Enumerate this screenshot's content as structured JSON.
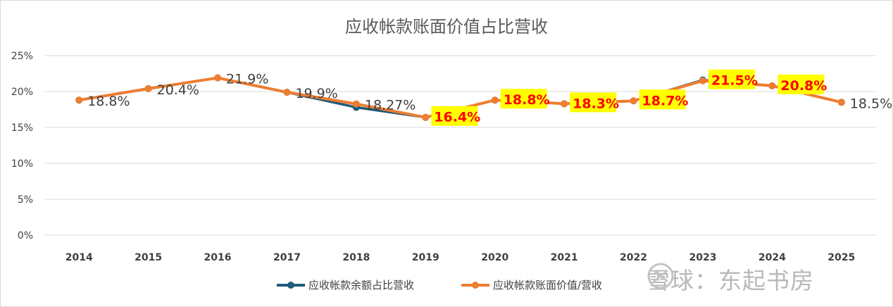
{
  "chart_data": {
    "type": "line",
    "title": "应收帐款账面价值占比营收",
    "xlabel": "",
    "ylabel": "",
    "ylim": [
      0,
      25
    ],
    "y_ticks": [
      "0%",
      "5%",
      "10%",
      "15%",
      "20%",
      "25%"
    ],
    "y_tick_values": [
      0,
      5,
      10,
      15,
      20,
      25
    ],
    "categories": [
      "2014",
      "2015",
      "2016",
      "2017",
      "2018",
      "2019",
      "2020",
      "2021",
      "2022",
      "2023",
      "2024",
      "2025"
    ],
    "grid": true,
    "legend_position": "bottom",
    "series": [
      {
        "name": "应收帐款余额占比营收",
        "color": "#1f5b7a",
        "values": [
          18.8,
          20.4,
          21.9,
          19.9,
          17.8,
          16.4,
          18.8,
          18.3,
          18.7,
          21.6,
          20.8,
          18.5
        ]
      },
      {
        "name": "应收帐款账面价值/营收",
        "color": "#ed7d31",
        "values": [
          18.8,
          20.4,
          21.9,
          19.9,
          18.27,
          16.4,
          18.8,
          18.3,
          18.7,
          21.5,
          20.8,
          18.5
        ]
      }
    ],
    "data_labels": [
      {
        "text": "18.8%",
        "highlight": false
      },
      {
        "text": "20.4%",
        "highlight": false
      },
      {
        "text": "21.9%",
        "highlight": false
      },
      {
        "text": "19.9%",
        "highlight": false
      },
      {
        "text": "18.27%",
        "highlight": false
      },
      {
        "text": "16.4%",
        "highlight": true
      },
      {
        "text": "18.8%",
        "highlight": true
      },
      {
        "text": "18.3%",
        "highlight": true
      },
      {
        "text": "18.7%",
        "highlight": true
      },
      {
        "text": "21.5%",
        "highlight": true
      },
      {
        "text": "20.8%",
        "highlight": true
      },
      {
        "text": "18.5%",
        "highlight": false
      }
    ],
    "highlight_colors": {
      "background": "#ffff00",
      "text": "#ff0000"
    }
  },
  "watermark": {
    "text": "雪球：东起书房"
  }
}
